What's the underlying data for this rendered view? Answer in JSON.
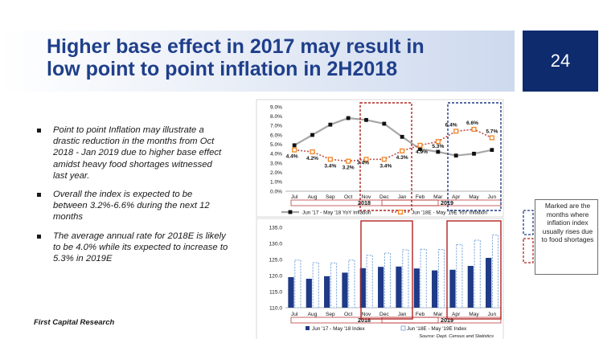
{
  "title": "Higher base effect in 2017 may result in\nlow point to point inflation in 2H2018",
  "page_number": "24",
  "bullets": [
    "Point to point Inflation may illustrate a drastic reduction in the months from Oct 2018 - Jan 2019 due to higher base effect amidst heavy food shortages witnessed last year.",
    "Overall the index is expected to be between 3.2%-6.6% during the next 12 months",
    "The average annual rate for 2018E is likely to be 4.0% while its expected to increase to 5.3% in 2019E"
  ],
  "footer": "First Capital Research",
  "note": "Marked are the months where inflation index usually rises due to food shortages",
  "colors": {
    "navy": "#0e2b6e",
    "title": "#1f3f8a",
    "line1": "#a6a6a6",
    "line2": "#c0504d",
    "marker_orange": "#f4841f",
    "bar_dark": "#1f3a86",
    "bar_light": "#7fa7d8",
    "box_blue": "#1f3a86",
    "box_red": "#b22222"
  },
  "chart_data": [
    {
      "type": "line",
      "categories": [
        "Jul",
        "Aug",
        "Sep",
        "Oct",
        "Nov",
        "Dec",
        "Jan",
        "Feb",
        "Mar",
        "Apr",
        "May",
        "Jun"
      ],
      "year_labels": [
        "2018",
        "2019"
      ],
      "ylim": [
        0,
        9
      ],
      "yticks": [
        "0.0%",
        "1.0%",
        "2.0%",
        "3.0%",
        "4.0%",
        "5.0%",
        "6.0%",
        "7.0%",
        "8.0%",
        "9.0%"
      ],
      "series": [
        {
          "name": "Jun '17 - May '18 YoY Inflation",
          "values": [
            4.9,
            6.0,
            7.1,
            7.8,
            7.6,
            7.2,
            5.8,
            4.5,
            4.2,
            3.8,
            4.0,
            4.4
          ],
          "labels": []
        },
        {
          "name": "Jun '18E - May '19E YoY Inflation",
          "values": [
            4.4,
            4.2,
            3.4,
            3.2,
            3.4,
            3.4,
            4.3,
            4.9,
            5.3,
            6.4,
            6.6,
            5.7
          ],
          "labels": [
            "4.4%",
            "4.2%",
            "3.4%",
            "3.2%",
            "3.4%",
            "3.4%",
            "4.3%",
            "4.9%",
            "5.3%",
            "6.4%",
            "6.6%",
            "5.7%"
          ]
        }
      ]
    },
    {
      "type": "bar",
      "categories": [
        "Jul",
        "Aug",
        "Sep",
        "Oct",
        "Nov",
        "Dec",
        "Jan",
        "Feb",
        "Mar",
        "Apr",
        "May",
        "Jun"
      ],
      "year_labels": [
        "2018",
        "2019"
      ],
      "ylim": [
        110,
        135
      ],
      "yticks": [
        "110.0",
        "115.0",
        "120.0",
        "125.0",
        "130.0",
        "135.0"
      ],
      "series": [
        {
          "name": "Jun '17 - May '18 Index",
          "values": [
            119.5,
            119.0,
            119.8,
            120.9,
            122.3,
            122.7,
            122.8,
            122.2,
            121.6,
            121.8,
            123.0,
            125.5
          ]
        },
        {
          "name": "Jun '18E - May '19E Index",
          "values": [
            124.8,
            124.0,
            123.9,
            124.8,
            126.3,
            127.0,
            128.0,
            128.2,
            128.1,
            129.6,
            131.0,
            132.6
          ]
        }
      ],
      "source": "Source: Dept. Census and Statistics"
    }
  ]
}
